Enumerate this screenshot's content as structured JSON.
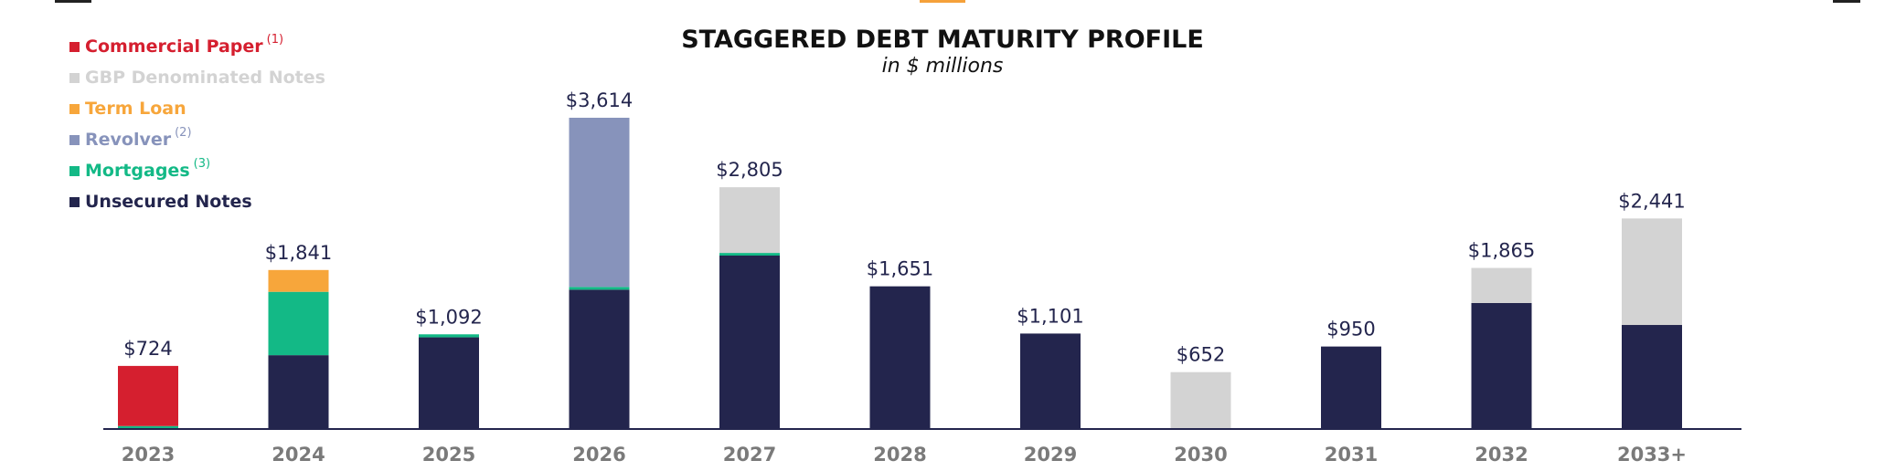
{
  "colors": {
    "commercial_paper": "#d51f2f",
    "gbp_notes": "#d3d3d3",
    "term_loan": "#f7a63b",
    "revolver": "#8793bb",
    "mortgages": "#13b986",
    "unsecured_notes": "#23254d",
    "axis": "#23254d",
    "tick": "#7a7a7a",
    "value_label": "#23254d"
  },
  "legend": [
    {
      "key": "commercial_paper",
      "label": "Commercial Paper",
      "note": "(1)"
    },
    {
      "key": "gbp_notes",
      "label": "GBP Denominated Notes",
      "note": ""
    },
    {
      "key": "term_loan",
      "label": "Term Loan",
      "note": ""
    },
    {
      "key": "revolver",
      "label": "Revolver",
      "note": "(2)"
    },
    {
      "key": "mortgages",
      "label": "Mortgages",
      "note": "(3)"
    },
    {
      "key": "unsecured_notes",
      "label": "Unsecured Notes",
      "note": ""
    }
  ],
  "chart_data": {
    "type": "bar",
    "stacked": true,
    "title": "STAGGERED DEBT MATURITY PROFILE",
    "subtitle": "in $ millions",
    "categories": [
      "2023",
      "2024",
      "2025",
      "2026",
      "2027",
      "2028",
      "2029",
      "2030",
      "2031",
      "2032",
      "2033+"
    ],
    "totals": [
      "$724",
      "$1,841",
      "$1,092",
      "$3,614",
      "$2,805",
      "$1,651",
      "$1,101",
      "$652",
      "$950",
      "$1,865",
      "$2,441"
    ],
    "series": [
      {
        "key": "unsecured_notes",
        "name": "Unsecured Notes",
        "values": [
          0,
          849,
          1057,
          1612,
          2009,
          1651,
          1101,
          0,
          950,
          1457,
          1201
        ]
      },
      {
        "key": "mortgages",
        "name": "Mortgages",
        "values": [
          24,
          738,
          35,
          32,
          31,
          0,
          0,
          0,
          0,
          0,
          0
        ]
      },
      {
        "key": "revolver",
        "name": "Revolver",
        "values": [
          0,
          0,
          0,
          1970,
          0,
          0,
          0,
          0,
          0,
          0,
          0
        ]
      },
      {
        "key": "term_loan",
        "name": "Term Loan",
        "values": [
          0,
          254,
          0,
          0,
          0,
          0,
          0,
          0,
          0,
          0,
          0
        ]
      },
      {
        "key": "gbp_notes",
        "name": "GBP Denominated Notes",
        "values": [
          0,
          0,
          0,
          0,
          765,
          0,
          0,
          652,
          0,
          408,
          1240
        ]
      },
      {
        "key": "commercial_paper",
        "name": "Commercial Paper",
        "values": [
          700,
          0,
          0,
          0,
          0,
          0,
          0,
          0,
          0,
          0,
          0
        ]
      }
    ],
    "ylim": [
      0,
      3614
    ],
    "grid": false,
    "legend_position": "top-left"
  }
}
